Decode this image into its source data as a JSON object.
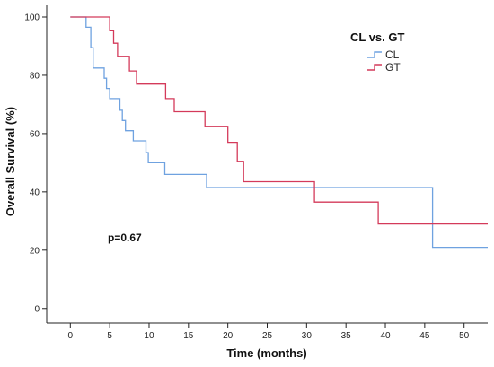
{
  "chart_data": {
    "type": "line",
    "step": true,
    "xlabel": "Time (months)",
    "ylabel": "Overall Survival (%)",
    "xlim": [
      -3,
      53
    ],
    "ylim": [
      -5,
      104
    ],
    "xticks": [
      0,
      5,
      10,
      15,
      20,
      25,
      30,
      35,
      40,
      45,
      50
    ],
    "yticks": [
      0,
      20,
      40,
      60,
      80,
      100
    ],
    "grid": false,
    "legend": {
      "title": "CL vs. GT",
      "position": "top-right"
    },
    "annotation": "p=0.67",
    "series": [
      {
        "name": "CL",
        "color": "#6fa2e0",
        "points": [
          [
            0,
            100
          ],
          [
            2,
            100
          ],
          [
            2,
            96.5
          ],
          [
            2.6,
            96.5
          ],
          [
            2.6,
            89.5
          ],
          [
            2.9,
            89.5
          ],
          [
            2.9,
            82.5
          ],
          [
            4.3,
            82.5
          ],
          [
            4.3,
            79
          ],
          [
            4.6,
            79
          ],
          [
            4.6,
            75.5
          ],
          [
            5,
            75.5
          ],
          [
            5,
            72
          ],
          [
            6.3,
            72
          ],
          [
            6.3,
            68
          ],
          [
            6.6,
            68
          ],
          [
            6.6,
            64.5
          ],
          [
            7,
            64.5
          ],
          [
            7,
            61
          ],
          [
            8,
            61
          ],
          [
            8,
            57.5
          ],
          [
            9.6,
            57.5
          ],
          [
            9.6,
            53.5
          ],
          [
            9.9,
            53.5
          ],
          [
            9.9,
            50
          ],
          [
            12,
            50
          ],
          [
            12,
            46
          ],
          [
            17.3,
            46
          ],
          [
            17.3,
            41.5
          ],
          [
            46,
            41.5
          ],
          [
            46,
            21
          ],
          [
            53,
            21
          ]
        ]
      },
      {
        "name": "GT",
        "color": "#d43a5a",
        "points": [
          [
            0,
            100
          ],
          [
            5,
            100
          ],
          [
            5,
            95.5
          ],
          [
            5.5,
            95.5
          ],
          [
            5.5,
            91
          ],
          [
            6,
            91
          ],
          [
            6,
            86.5
          ],
          [
            7.5,
            86.5
          ],
          [
            7.5,
            81.5
          ],
          [
            8.4,
            81.5
          ],
          [
            8.4,
            77
          ],
          [
            12.1,
            77
          ],
          [
            12.1,
            72
          ],
          [
            13.2,
            72
          ],
          [
            13.2,
            67.5
          ],
          [
            17.1,
            67.5
          ],
          [
            17.1,
            62.5
          ],
          [
            20,
            62.5
          ],
          [
            20,
            57
          ],
          [
            21.2,
            57
          ],
          [
            21.2,
            50.5
          ],
          [
            22,
            50.5
          ],
          [
            22,
            43.5
          ],
          [
            31,
            43.5
          ],
          [
            31,
            36.5
          ],
          [
            39.1,
            36.5
          ],
          [
            39.1,
            29
          ],
          [
            53,
            29
          ]
        ]
      }
    ]
  }
}
